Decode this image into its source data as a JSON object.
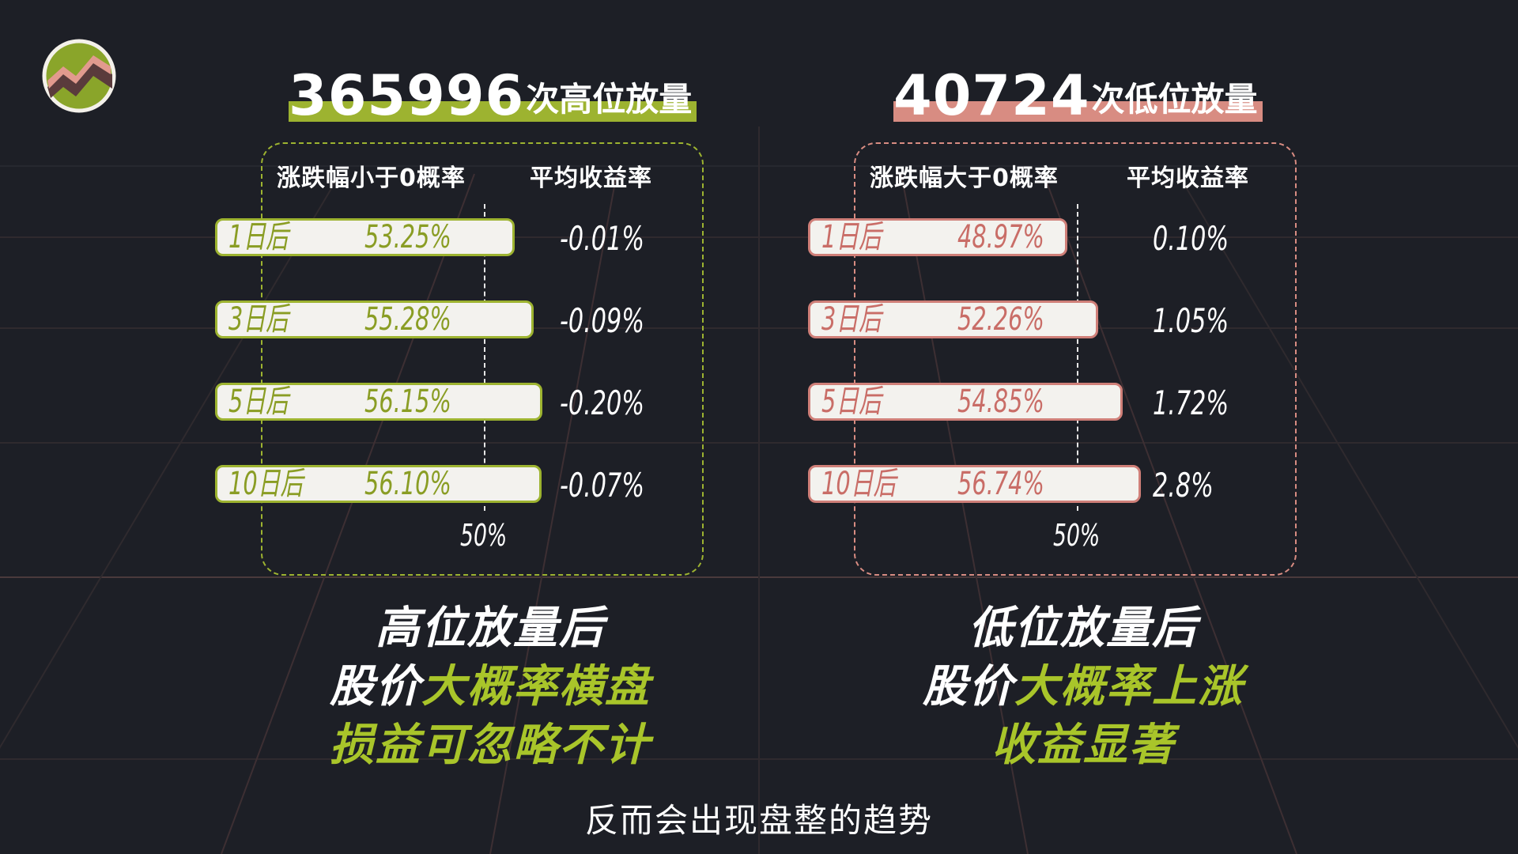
{
  "colors": {
    "background": "#1d1f26",
    "green_accent": "#9db330",
    "pink_accent": "#d88c82",
    "highlight_text": "#a9c52a"
  },
  "left": {
    "headline_number": "365996",
    "headline_suffix": "次高位放量",
    "col_prob": "涨跌幅小于0概率",
    "col_return": "平均收益率",
    "axis_label": "50%",
    "rows": [
      {
        "label": "1日后",
        "pct": "53.25%",
        "prob": 53.25,
        "ret": "-0.01%"
      },
      {
        "label": "3日后",
        "pct": "55.28%",
        "prob": 55.28,
        "ret": "-0.09%"
      },
      {
        "label": "5日后",
        "pct": "56.15%",
        "prob": 56.15,
        "ret": "-0.20%"
      },
      {
        "label": "10日后",
        "pct": "56.10%",
        "prob": 56.1,
        "ret": "-0.07%"
      }
    ],
    "summary_line1": "高位放量后",
    "summary_line2_white": "股价",
    "summary_line2_green": "大概率横盘",
    "summary_line3": "损益可忽略不计"
  },
  "right": {
    "headline_number": "40724",
    "headline_suffix": "次低位放量",
    "col_prob": "涨跌幅大于0概率",
    "col_return": "平均收益率",
    "axis_label": "50%",
    "rows": [
      {
        "label": "1日后",
        "pct": "48.97%",
        "prob": 48.97,
        "ret": "0.10%"
      },
      {
        "label": "3日后",
        "pct": "52.26%",
        "prob": 52.26,
        "ret": "1.05%"
      },
      {
        "label": "5日后",
        "pct": "54.85%",
        "prob": 54.85,
        "ret": "1.72%"
      },
      {
        "label": "10日后",
        "pct": "56.74%",
        "prob": 56.74,
        "ret": "2.8%"
      }
    ],
    "summary_line1": "低位放量后",
    "summary_line2_white": "股价",
    "summary_line2_green": "大概率上涨",
    "summary_line3": "收益显著"
  },
  "caption": "反而会出现盘整的趋势",
  "icons": {
    "logo": "zigzag-badge-icon"
  }
}
